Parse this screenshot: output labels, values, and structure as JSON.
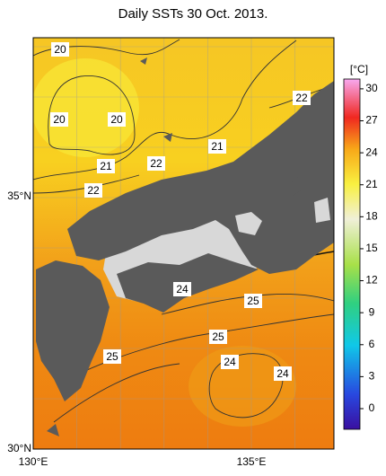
{
  "title": "Daily SSTs 30 Oct. 2013.",
  "axes": {
    "lat_labels": [
      "35°N",
      "30°N"
    ],
    "lon_labels": [
      "130°E",
      "135°E"
    ]
  },
  "colorbar": {
    "unit": "[°C]",
    "ticks": [
      30,
      27,
      24,
      21,
      18,
      15,
      12,
      9,
      6,
      3,
      0
    ]
  },
  "contour_labels": [
    20,
    20,
    20,
    21,
    22,
    22,
    21,
    22,
    24,
    25,
    25,
    25,
    24,
    24
  ]
}
